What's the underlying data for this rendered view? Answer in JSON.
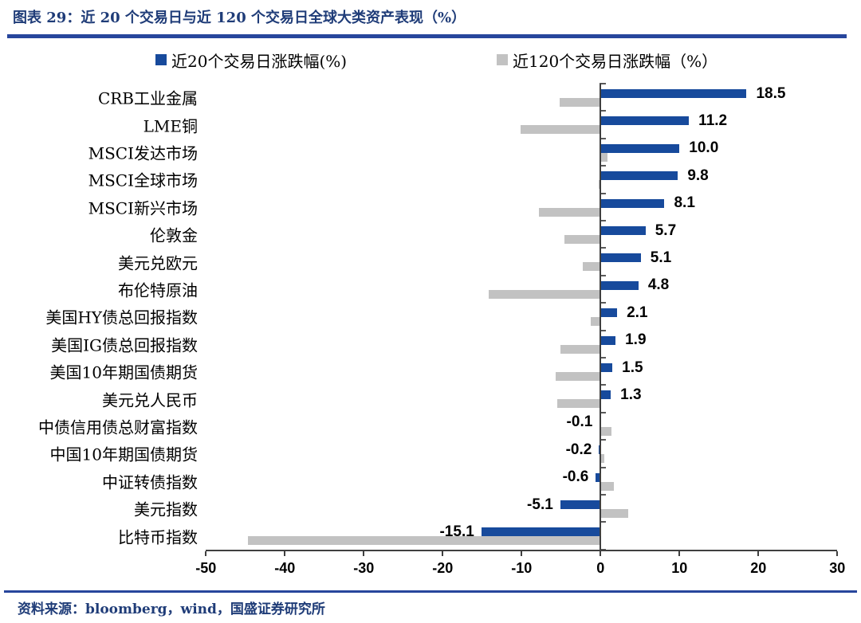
{
  "page": {
    "title": "图表 29：近 20 个交易日与近 120 个交易日全球大类资产表现（%）",
    "source": "资料来源：bloomberg，wind，国盛证券研究所"
  },
  "chart_data": {
    "type": "bar",
    "orientation": "horizontal",
    "title": "近 20 个交易日与近 120 个交易日全球大类资产表现（%）",
    "categories": [
      "CRB工业金属",
      "LME铜",
      "MSCI发达市场",
      "MSCI全球市场",
      "MSCI新兴市场",
      "伦敦金",
      "美元兑欧元",
      "布伦特原油",
      "美国HY债总回报指数",
      "美国IG债总回报指数",
      "美国10年期国债期货",
      "美元兑人民币",
      "中债信用债总财富指数",
      "中国10年期国债期货",
      "中证转债指数",
      "美元指数",
      "比特币指数"
    ],
    "series": [
      {
        "name": "近20个交易日涨跌幅(%)",
        "color": "#174a9c",
        "values": [
          18.5,
          11.2,
          10.0,
          9.8,
          8.1,
          5.7,
          5.1,
          4.8,
          2.1,
          1.9,
          1.5,
          1.3,
          -0.1,
          -0.2,
          -0.6,
          -5.1,
          -15.1
        ]
      },
      {
        "name": "近120个交易日涨跌幅（%）",
        "color": "#c2c2c2",
        "values": [
          -5.2,
          -10.1,
          0.9,
          -0.2,
          -7.8,
          -4.6,
          -2.3,
          -14.2,
          -1.2,
          -5.1,
          -5.7,
          -5.5,
          1.4,
          0.5,
          1.7,
          3.5,
          -44.7
        ]
      }
    ],
    "value_labels": [
      "18.5",
      "11.2",
      "10.0",
      "9.8",
      "8.1",
      "5.7",
      "5.1",
      "4.8",
      "2.1",
      "1.9",
      "1.5",
      "1.3",
      "-0.1",
      "-0.2",
      "-0.6",
      "-5.1",
      "-15.1"
    ],
    "value_labels_series": 0,
    "xlim": [
      -50,
      30
    ],
    "x_ticks": [
      -50,
      -40,
      -30,
      -20,
      -10,
      0,
      10,
      20,
      30
    ],
    "legend_position": "top",
    "grid": false
  }
}
